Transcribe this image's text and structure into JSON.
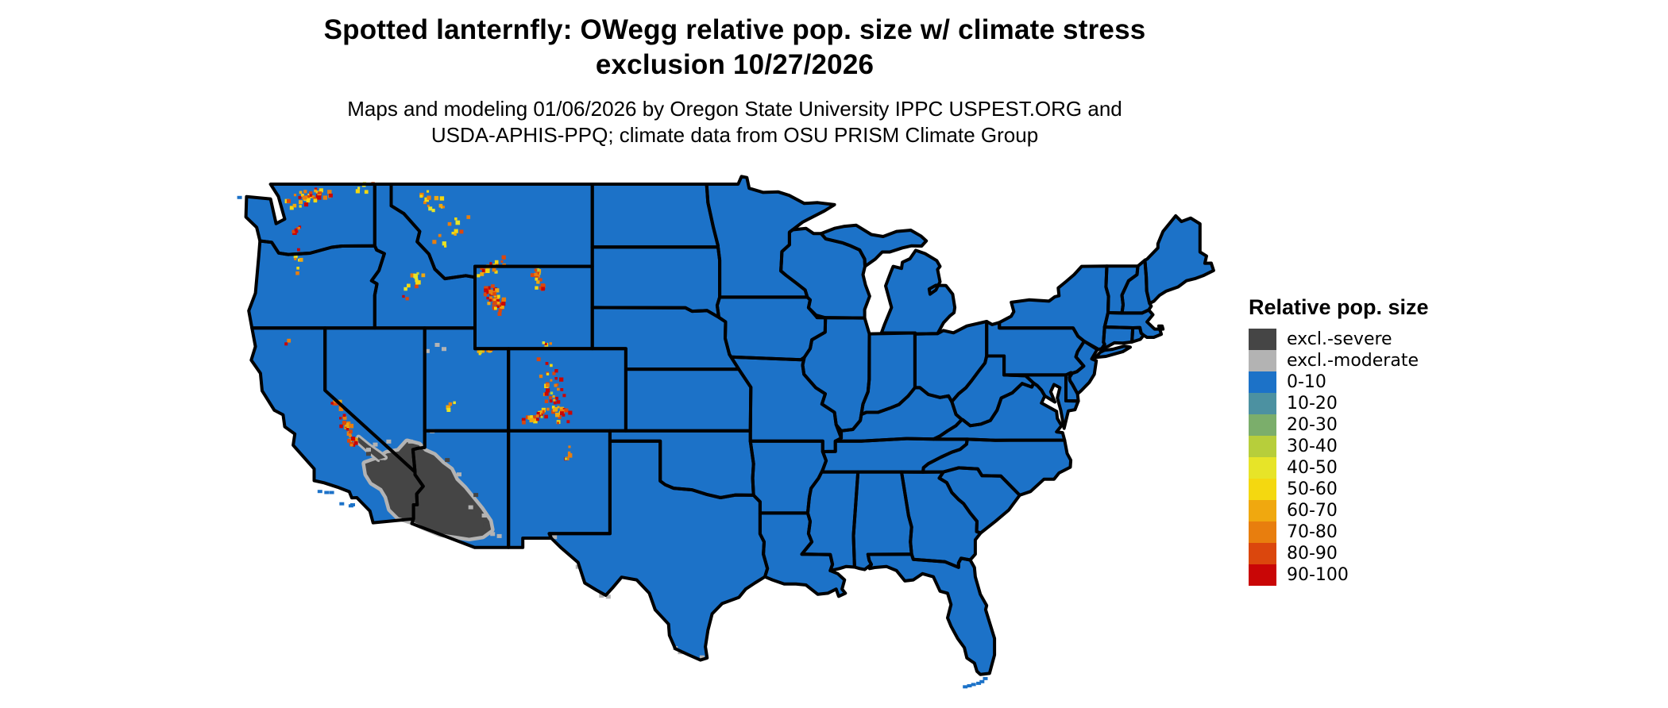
{
  "title": {
    "line1": "Spotted lanternfly: OWegg relative pop. size w/ climate stress",
    "line2": "exclusion 10/27/2026"
  },
  "subtitle": {
    "line1": "Maps and modeling 01/06/2026 by Oregon State University IPPC USPEST.ORG and",
    "line2": "USDA-APHIS-PPQ; climate data from OSU PRISM Climate Group"
  },
  "legend": {
    "title": "Relative pop. size",
    "items": [
      {
        "label": "excl.-severe",
        "color": "#454545"
      },
      {
        "label": "excl.-moderate",
        "color": "#B3B3B3"
      },
      {
        "label": "0-10",
        "color": "#1C72C8"
      },
      {
        "label": "10-20",
        "color": "#4C91A1"
      },
      {
        "label": "20-30",
        "color": "#7BAE6B"
      },
      {
        "label": "30-40",
        "color": "#B7CE3B"
      },
      {
        "label": "40-50",
        "color": "#E7E428"
      },
      {
        "label": "50-60",
        "color": "#F4D810"
      },
      {
        "label": "60-70",
        "color": "#F0A80F"
      },
      {
        "label": "70-80",
        "color": "#E87E0E"
      },
      {
        "label": "80-90",
        "color": "#DB470D"
      },
      {
        "label": "90-100",
        "color": "#C90606"
      }
    ]
  },
  "map": {
    "base_category": "0-10",
    "border_color": "#000000",
    "background": "#FFFFFF"
  }
}
